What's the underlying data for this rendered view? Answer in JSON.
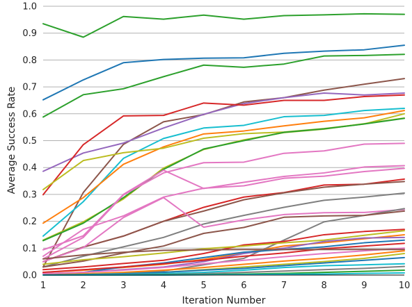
{
  "chart_data": {
    "type": "line",
    "title": "",
    "xlabel": "Iteration Number",
    "ylabel": "Average Success Rate",
    "x": [
      1,
      2,
      3,
      4,
      5,
      6,
      7,
      8,
      9,
      10
    ],
    "xlim": [
      1,
      10
    ],
    "ylim": [
      0.0,
      1.0
    ],
    "xticks": [
      "1",
      "2",
      "3",
      "4",
      "5",
      "6",
      "7",
      "8",
      "9",
      "10"
    ],
    "yticks": [
      "0.0",
      "0.1",
      "0.2",
      "0.3",
      "0.4",
      "0.5",
      "0.6",
      "0.7",
      "0.8",
      "0.9",
      "1.0"
    ],
    "grid": "horizontal",
    "legend": "none",
    "series": [
      {
        "color": "#2ca02c",
        "values": [
          0.935,
          0.885,
          0.962,
          0.952,
          0.967,
          0.952,
          0.965,
          0.968,
          0.972,
          0.97
        ]
      },
      {
        "color": "#1f77b4",
        "values": [
          0.652,
          0.726,
          0.79,
          0.802,
          0.807,
          0.808,
          0.825,
          0.833,
          0.838,
          0.855
        ]
      },
      {
        "color": "#2ca02c",
        "values": [
          0.588,
          0.671,
          0.693,
          0.738,
          0.781,
          0.773,
          0.785,
          0.815,
          0.817,
          0.821
        ]
      },
      {
        "color": "#8c564b",
        "values": [
          0.03,
          0.307,
          0.486,
          0.57,
          0.597,
          0.644,
          0.66,
          0.688,
          0.71,
          0.731
        ]
      },
      {
        "color": "#9467bd",
        "values": [
          0.386,
          0.454,
          0.491,
          0.547,
          0.598,
          0.638,
          0.66,
          0.677,
          0.67,
          0.677
        ]
      },
      {
        "color": "#d62728",
        "values": [
          0.299,
          0.485,
          0.592,
          0.594,
          0.64,
          0.632,
          0.65,
          0.65,
          0.664,
          0.67
        ]
      },
      {
        "color": "#17becf",
        "values": [
          0.145,
          0.273,
          0.434,
          0.508,
          0.547,
          0.557,
          0.589,
          0.594,
          0.612,
          0.62
        ]
      },
      {
        "color": "#ff7f0e",
        "values": [
          0.193,
          0.288,
          0.412,
          0.477,
          0.525,
          0.536,
          0.555,
          0.572,
          0.585,
          0.612
        ]
      },
      {
        "color": "#bcbd22",
        "values": [
          0.318,
          0.426,
          0.455,
          0.472,
          0.509,
          0.526,
          0.532,
          0.545,
          0.562,
          0.6
        ]
      },
      {
        "color": "#bcbd22",
        "values": [
          0.13,
          0.198,
          0.283,
          0.398,
          0.467,
          0.503,
          0.53,
          0.543,
          0.563,
          0.584
        ]
      },
      {
        "color": "#2ca02c",
        "values": [
          0.128,
          0.193,
          0.288,
          0.393,
          0.469,
          0.5,
          0.531,
          0.544,
          0.562,
          0.583
        ]
      },
      {
        "color": "#e377c2",
        "values": [
          0.06,
          0.14,
          0.298,
          0.38,
          0.418,
          0.42,
          0.453,
          0.462,
          0.487,
          0.49
        ]
      },
      {
        "color": "#e377c2",
        "values": [
          0.094,
          0.146,
          0.3,
          0.39,
          0.322,
          0.345,
          0.367,
          0.38,
          0.402,
          0.407
        ]
      },
      {
        "color": "#e377c2",
        "values": [
          0.07,
          0.17,
          0.22,
          0.29,
          0.323,
          0.332,
          0.36,
          0.368,
          0.385,
          0.397
        ]
      },
      {
        "color": "#d62728",
        "values": [
          0.05,
          0.104,
          0.145,
          0.2,
          0.252,
          0.29,
          0.307,
          0.335,
          0.338,
          0.357
        ]
      },
      {
        "color": "#8c564b",
        "values": [
          0.05,
          0.104,
          0.145,
          0.2,
          0.238,
          0.28,
          0.306,
          0.327,
          0.338,
          0.348
        ]
      },
      {
        "color": "#7f7f7f",
        "values": [
          0.03,
          0.07,
          0.105,
          0.14,
          0.19,
          0.222,
          0.252,
          0.278,
          0.29,
          0.305
        ]
      },
      {
        "color": "#e377c2",
        "values": [
          0.05,
          0.102,
          0.214,
          0.288,
          0.178,
          0.205,
          0.225,
          0.232,
          0.233,
          0.244
        ]
      },
      {
        "color": "#7f7f7f",
        "values": [
          0.001,
          0.003,
          0.008,
          0.015,
          0.038,
          0.062,
          0.13,
          0.198,
          0.222,
          0.247
        ]
      },
      {
        "color": "#8c564b",
        "values": [
          0.03,
          0.052,
          0.082,
          0.108,
          0.155,
          0.177,
          0.215,
          0.22,
          0.222,
          0.238
        ]
      },
      {
        "color": "#d62728",
        "values": [
          0.02,
          0.03,
          0.043,
          0.055,
          0.08,
          0.112,
          0.125,
          0.15,
          0.162,
          0.17
        ]
      },
      {
        "color": "#bcbd22",
        "values": [
          0.04,
          0.057,
          0.068,
          0.082,
          0.098,
          0.108,
          0.12,
          0.13,
          0.148,
          0.165
        ]
      },
      {
        "color": "#ff7f0e",
        "values": [
          0.01,
          0.018,
          0.028,
          0.04,
          0.058,
          0.082,
          0.108,
          0.12,
          0.135,
          0.15
        ]
      },
      {
        "color": "#9467bd",
        "values": [
          0.005,
          0.01,
          0.02,
          0.03,
          0.05,
          0.08,
          0.1,
          0.125,
          0.138,
          0.14
        ]
      },
      {
        "color": "#1f77b4",
        "values": [
          0.001,
          0.01,
          0.03,
          0.045,
          0.065,
          0.085,
          0.095,
          0.105,
          0.12,
          0.13
        ]
      },
      {
        "color": "#d62728",
        "values": [
          0.01,
          0.02,
          0.03,
          0.042,
          0.055,
          0.07,
          0.082,
          0.098,
          0.108,
          0.118
        ]
      },
      {
        "color": "#e377c2",
        "values": [
          0.005,
          0.01,
          0.018,
          0.028,
          0.042,
          0.055,
          0.068,
          0.08,
          0.09,
          0.1
        ]
      },
      {
        "color": "#8c564b",
        "values": [
          0.06,
          0.075,
          0.085,
          0.092,
          0.094,
          0.095,
          0.095,
          0.095,
          0.095,
          0.095
        ]
      },
      {
        "color": "#ff7f0e",
        "values": [
          0.0,
          0.005,
          0.01,
          0.018,
          0.028,
          0.04,
          0.052,
          0.062,
          0.075,
          0.09
        ]
      },
      {
        "color": "#bcbd22",
        "values": [
          0.0,
          0.002,
          0.006,
          0.01,
          0.02,
          0.03,
          0.04,
          0.05,
          0.062,
          0.08
        ]
      },
      {
        "color": "#1f77b4",
        "values": [
          0.0,
          0.002,
          0.005,
          0.01,
          0.018,
          0.025,
          0.035,
          0.045,
          0.055,
          0.065
        ]
      },
      {
        "color": "#17becf",
        "values": [
          0.0,
          0.001,
          0.002,
          0.005,
          0.01,
          0.018,
          0.028,
          0.035,
          0.038,
          0.042
        ]
      },
      {
        "color": "#7f7f7f",
        "values": [
          0.0,
          0.0,
          0.001,
          0.002,
          0.005,
          0.01,
          0.015,
          0.02,
          0.025,
          0.032
        ]
      },
      {
        "color": "#2ca02c",
        "values": [
          0.0,
          0.0,
          0.0,
          0.001,
          0.002,
          0.004,
          0.006,
          0.01,
          0.014,
          0.018
        ]
      },
      {
        "color": "#17becf",
        "values": [
          0.0,
          0.0,
          0.0,
          0.0,
          0.001,
          0.002,
          0.003,
          0.004,
          0.006,
          0.008
        ]
      }
    ]
  }
}
